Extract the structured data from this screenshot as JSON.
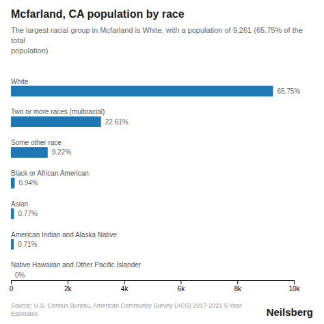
{
  "chart_data": {
    "type": "bar",
    "orientation": "horizontal",
    "title": "Mcfarland, CA population by race",
    "subtitle": "The largest racial group in Mcfarland is White, with a population of 9,261 (65.75% of the total\npopulation)",
    "categories": [
      "White",
      "Two or more races (multiracial)",
      "Some other race",
      "Black or African American",
      "Asian",
      "American Indian and Alaska Native",
      "Native Hawaiian and Other Pacific Islander"
    ],
    "values": [
      9261,
      3183,
      1299,
      132,
      108,
      100,
      0
    ],
    "percentages": [
      {
        "value": 65.75,
        "label": "65.75%"
      },
      {
        "value": 22.61,
        "label": "22.61%"
      },
      {
        "value": 9.22,
        "label": "9.22%"
      },
      {
        "value": 0.94,
        "label": "0.94%"
      },
      {
        "value": 0.77,
        "label": "0.77%"
      },
      {
        "value": 0.71,
        "label": "0.71%"
      },
      {
        "value": 0,
        "label": "0%"
      }
    ],
    "xlim": [
      0,
      10000
    ],
    "xticks": [
      0,
      {
        "value": 2000,
        "label": "2k"
      },
      {
        "value": 4000,
        "label": "4k"
      },
      {
        "value": 6000,
        "label": "6k"
      },
      {
        "value": 8000,
        "label": "8k"
      },
      {
        "value": 10000,
        "label": "10k"
      }
    ],
    "grid": false,
    "source": "Source: U.S. Census Bureau, American Community Survey (ACS) 2017-2021 5-Year Estimates",
    "brand": "Neilsberg"
  }
}
